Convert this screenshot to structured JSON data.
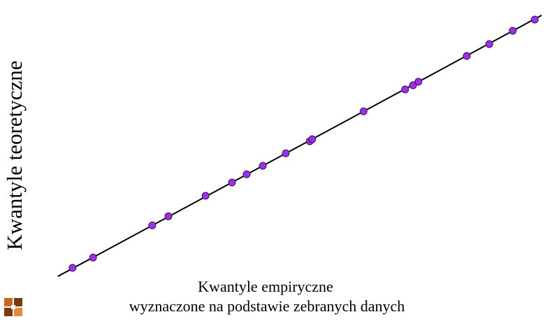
{
  "chart_data": {
    "type": "scatter",
    "x_label": [
      "Kwantyle empiryczne",
      "wyznaczone na podstawie zebranych danych"
    ],
    "y_label": "Kwantyle teoretyczne",
    "series": [
      {
        "color": "#9b30e6",
        "x": [
          3.4,
          7.6,
          19.7,
          23.0,
          30.6,
          36.0,
          39.0,
          42.3,
          47.0,
          51.9,
          52.4,
          62.9,
          71.4,
          73.0,
          74.1,
          84.0,
          88.6,
          93.4,
          97.9
        ],
        "values": [
          4.5,
          8.4,
          20.5,
          23.9,
          31.6,
          36.6,
          39.7,
          42.9,
          47.6,
          52.1,
          52.9,
          63.4,
          71.6,
          73.2,
          74.5,
          84.2,
          88.7,
          93.7,
          97.9
        ]
      }
    ],
    "fit_line": {
      "color": "#000000",
      "x": [
        0.4,
        99.3
      ],
      "values": [
        1.3,
        99.5
      ]
    },
    "xlim": [
      0,
      100
    ],
    "ylim": [
      0,
      100
    ]
  }
}
